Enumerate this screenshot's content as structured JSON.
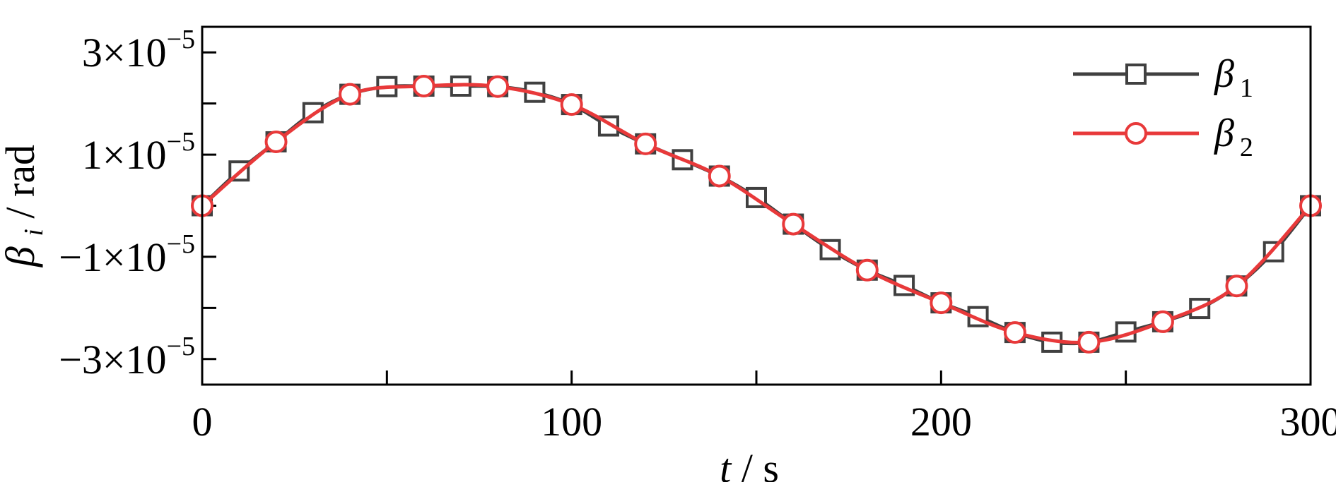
{
  "chart_data": {
    "type": "line",
    "xlabel": {
      "var": "t",
      "unit": "s"
    },
    "ylabel": {
      "var": "β",
      "sub": "i",
      "unit": "rad"
    },
    "xlim": [
      0,
      300
    ],
    "ylim": [
      -3.5e-05,
      3.5e-05
    ],
    "x_ticks": [
      {
        "value": 0,
        "label": "0"
      },
      {
        "value": 100,
        "label": "100"
      },
      {
        "value": 200,
        "label": "200"
      },
      {
        "value": 300,
        "label": "300"
      }
    ],
    "x_minor_ticks": [
      50,
      150,
      250
    ],
    "y_ticks": [
      {
        "value": 3e-05,
        "mant": "3×10",
        "exp": "−5"
      },
      {
        "value": 1e-05,
        "mant": "1×10",
        "exp": "−5"
      },
      {
        "value": -1e-05,
        "mant": "−1×10",
        "exp": "−5"
      },
      {
        "value": -3e-05,
        "mant": "−3×10",
        "exp": "−5"
      }
    ],
    "y_minor_ticks": [
      2e-05,
      0,
      -2e-05
    ],
    "grid": false,
    "legend_position": "top-right",
    "series": [
      {
        "name": "β",
        "sub": "1",
        "color": "#404040",
        "marker": "square",
        "x": [
          0,
          10,
          20,
          30,
          40,
          50,
          60,
          70,
          80,
          90,
          100,
          110,
          120,
          130,
          140,
          150,
          160,
          170,
          180,
          190,
          200,
          210,
          220,
          230,
          240,
          250,
          260,
          270,
          280,
          290,
          300
        ],
        "y": [
          0,
          6.8e-06,
          1.25e-05,
          1.82e-05,
          2.18e-05,
          2.33e-05,
          2.34e-05,
          2.34e-05,
          2.33e-05,
          2.22e-05,
          1.98e-05,
          1.56e-05,
          1.21e-05,
          9e-06,
          5.8e-06,
          1.6e-06,
          -3.6e-06,
          -8.6e-06,
          -1.26e-05,
          -1.56e-05,
          -1.9e-05,
          -2.17e-05,
          -2.48e-05,
          -2.67e-05,
          -2.67e-05,
          -2.47e-05,
          -2.27e-05,
          -2.01e-05,
          -1.57e-05,
          -9e-06,
          0
        ]
      },
      {
        "name": "β",
        "sub": "2",
        "color": "#e8393a",
        "marker": "circle",
        "x": [
          0,
          20,
          40,
          60,
          80,
          100,
          120,
          140,
          160,
          180,
          200,
          220,
          240,
          260,
          280,
          300
        ],
        "y": [
          0,
          1.25e-05,
          2.18e-05,
          2.34e-05,
          2.33e-05,
          1.98e-05,
          1.21e-05,
          5.8e-06,
          -3.6e-06,
          -1.26e-05,
          -1.9e-05,
          -2.48e-05,
          -2.67e-05,
          -2.27e-05,
          -1.57e-05,
          0
        ]
      }
    ]
  }
}
